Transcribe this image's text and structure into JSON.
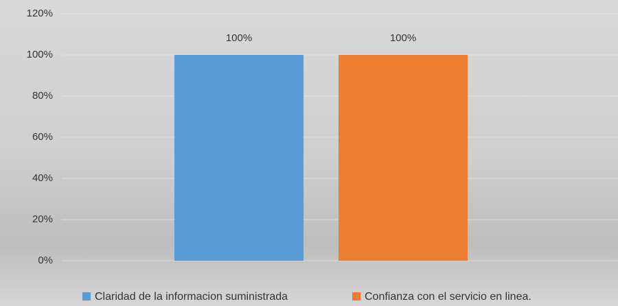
{
  "chart_data": {
    "type": "bar",
    "categories": [
      null
    ],
    "series": [
      {
        "name": "Claridad de la informacion suministrada",
        "color": "#5b9bd5",
        "values": [
          100
        ],
        "value_labels": [
          "100%"
        ]
      },
      {
        "name": "Confianza con el servicio en linea.",
        "color": "#ed7d31",
        "values": [
          100
        ],
        "value_labels": [
          "100%"
        ]
      }
    ],
    "ylim": [
      0,
      120
    ],
    "yticks": [
      {
        "value": 0,
        "label": "0%"
      },
      {
        "value": 20,
        "label": "20%"
      },
      {
        "value": 40,
        "label": "40%"
      },
      {
        "value": 60,
        "label": "60%"
      },
      {
        "value": 80,
        "label": "80%"
      },
      {
        "value": 100,
        "label": "100%"
      },
      {
        "value": 120,
        "label": "120%"
      }
    ],
    "grid": true,
    "legend": "bottom"
  }
}
